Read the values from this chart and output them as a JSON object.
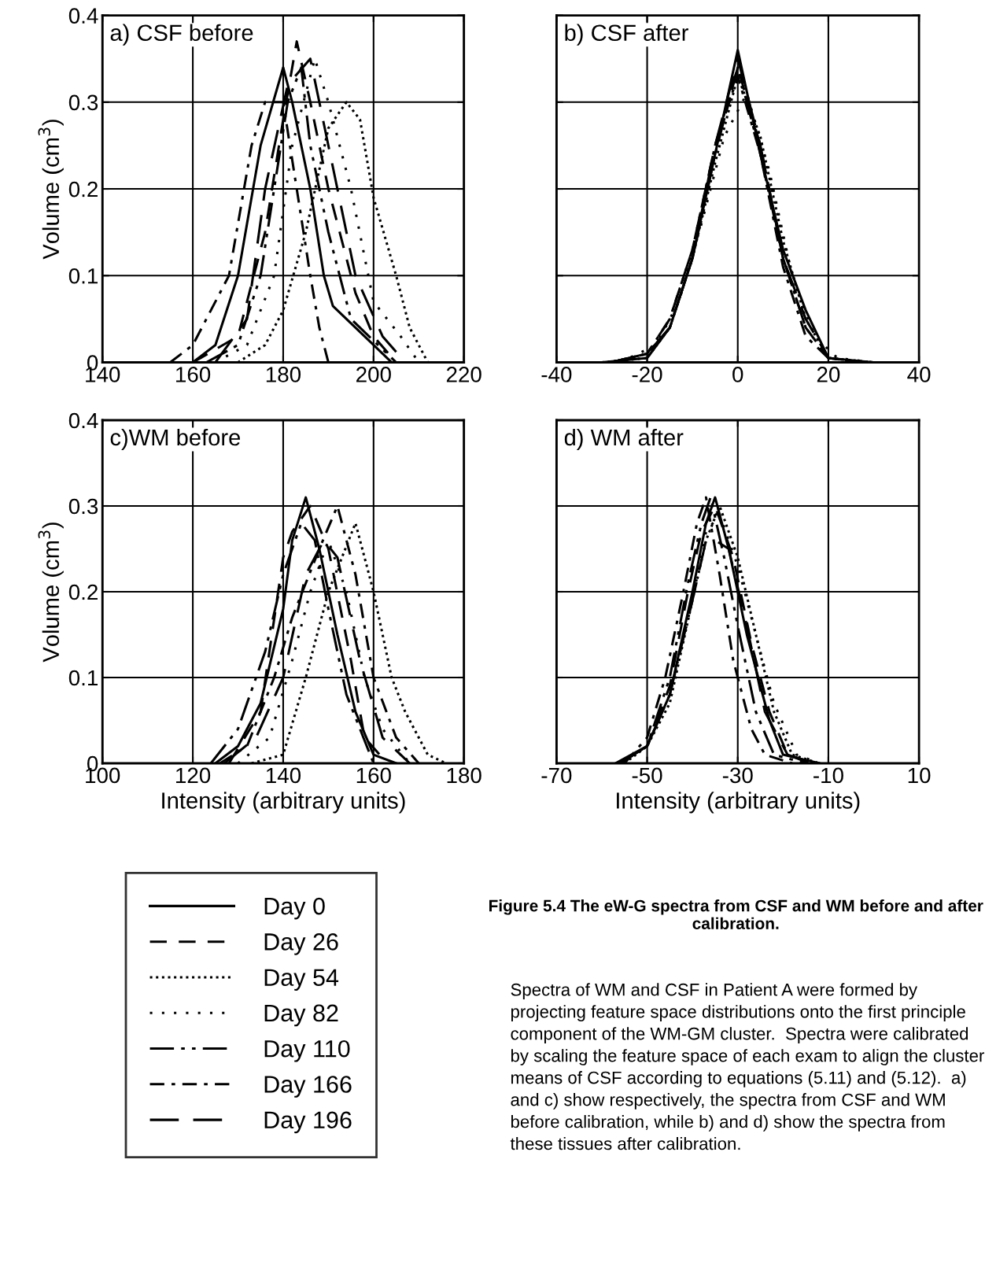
{
  "chart_data": [
    {
      "type": "line",
      "title": "a) CSF before",
      "ylabel": "Volume (cm$^{3}$)",
      "xlim": [
        140,
        220
      ],
      "xticks": [
        140,
        160,
        180,
        200,
        220
      ],
      "ylim": [
        0,
        0.4
      ],
      "yticks": [
        0,
        0.1,
        0.2,
        0.3,
        0.4
      ],
      "grid": true,
      "legend": "bottom",
      "tick_labels": "xy",
      "annotations": [
        "Figure 5.4 The eW-G spectra from CSF and WM before and after calibration.",
        "Spectra of WM and CSF in Patient A were formed by projecting feature space distributions onto the first principle component of the WM-GM cluster.  Spectra were calibrated by scaling the feature space of each exam to align the cluster means of CSF according to equations (5.11) and (5.12).  a) and c) show respectively, the spectra from CSF and WM before calibration, while b) and d) show the spectra from these tissues after calibration."
      ],
      "series": [
        {
          "name": "Day 0",
          "color": "#000000",
          "line_style": "solid",
          "x": [
            160,
            165,
            170,
            175,
            180,
            182,
            186,
            189,
            191,
            200,
            204
          ],
          "values": [
            0,
            0.02,
            0.1,
            0.25,
            0.34,
            0.3,
            0.2,
            0.1,
            0.065,
            0.02,
            0
          ]
        },
        {
          "name": "Day 26",
          "color": "#000000",
          "line_style": "dashed",
          "x": [
            160,
            170,
            176,
            180,
            183,
            186,
            190,
            196,
            200,
            205
          ],
          "values": [
            0,
            0.03,
            0.15,
            0.28,
            0.37,
            0.3,
            0.2,
            0.08,
            0.03,
            0
          ]
        },
        {
          "name": "Day 54",
          "color": "#000000",
          "line_style": "dotted",
          "x": [
            170,
            176,
            180,
            185,
            190,
            194,
            197,
            200,
            205,
            208,
            212
          ],
          "values": [
            0,
            0.02,
            0.06,
            0.15,
            0.27,
            0.3,
            0.28,
            0.19,
            0.1,
            0.04,
            0
          ]
        },
        {
          "name": "Day 82",
          "color": "#000000",
          "line_style": "loosely dotted",
          "x": [
            165,
            172,
            178,
            182,
            187,
            190,
            195,
            200,
            206,
            210
          ],
          "values": [
            0,
            0.02,
            0.1,
            0.25,
            0.35,
            0.3,
            0.2,
            0.07,
            0.03,
            0
          ]
        },
        {
          "name": "Day 110",
          "color": "#000000",
          "line_style": "dash dot dot",
          "x": [
            163,
            170,
            175,
            178,
            181,
            184,
            186,
            190,
            195,
            205
          ],
          "values": [
            0,
            0.02,
            0.1,
            0.2,
            0.3,
            0.34,
            0.25,
            0.15,
            0.05,
            0
          ]
        },
        {
          "name": "Day 166",
          "color": "#000000",
          "line_style": "dash dot",
          "x": [
            155,
            160,
            168,
            173,
            176,
            180,
            183,
            186,
            188,
            190
          ],
          "values": [
            0,
            0.02,
            0.1,
            0.25,
            0.3,
            0.3,
            0.2,
            0.1,
            0.04,
            0
          ]
        },
        {
          "name": "Day 196",
          "color": "#000000",
          "line_style": "long dashed",
          "x": [
            165,
            172,
            176,
            181,
            186,
            190,
            196,
            202,
            207
          ],
          "values": [
            0,
            0.05,
            0.2,
            0.32,
            0.35,
            0.25,
            0.1,
            0.03,
            0
          ]
        }
      ]
    },
    {
      "type": "line",
      "title": "b) CSF after",
      "xlim": [
        -40,
        40
      ],
      "xticks": [
        -40,
        -20,
        0,
        20,
        40
      ],
      "ylim": [
        0,
        0.4
      ],
      "yticks": [
        0,
        0.1,
        0.2,
        0.3,
        0.4
      ],
      "grid": true,
      "legend": "bottom",
      "tick_labels": "x",
      "series": [
        {
          "name": "Day 0",
          "color": "#000000",
          "line_style": "solid",
          "x": [
            -30,
            -20,
            -15,
            -10,
            -5,
            0,
            5,
            10,
            15,
            20,
            30
          ],
          "values": [
            0,
            0.005,
            0.04,
            0.12,
            0.24,
            0.36,
            0.24,
            0.13,
            0.06,
            0.005,
            0
          ]
        },
        {
          "name": "Day 26",
          "color": "#000000",
          "line_style": "dashed",
          "x": [
            -28,
            -20,
            -15,
            -10,
            -5,
            0,
            5,
            10,
            15,
            20,
            28
          ],
          "values": [
            0,
            0.01,
            0.05,
            0.13,
            0.25,
            0.34,
            0.25,
            0.12,
            0.04,
            0.005,
            0
          ]
        },
        {
          "name": "Day 54",
          "color": "#000000",
          "line_style": "dotted",
          "x": [
            -30,
            -20,
            -15,
            -10,
            -5,
            0,
            5,
            10,
            15,
            20,
            30
          ],
          "values": [
            0,
            0.005,
            0.04,
            0.12,
            0.23,
            0.33,
            0.26,
            0.14,
            0.05,
            0.005,
            0
          ]
        },
        {
          "name": "Day 82",
          "color": "#000000",
          "line_style": "loosely dotted",
          "x": [
            -26,
            -18,
            -13,
            -8,
            -3,
            2,
            7,
            12,
            17,
            22,
            30
          ],
          "values": [
            0,
            0.02,
            0.07,
            0.16,
            0.26,
            0.31,
            0.22,
            0.1,
            0.03,
            0.005,
            0
          ]
        },
        {
          "name": "Day 110",
          "color": "#000000",
          "line_style": "dash dot dot",
          "x": [
            -28,
            -20,
            -15,
            -10,
            -5,
            0,
            5,
            10,
            15,
            20,
            28
          ],
          "values": [
            0,
            0.01,
            0.04,
            0.12,
            0.24,
            0.34,
            0.24,
            0.12,
            0.04,
            0.005,
            0
          ]
        },
        {
          "name": "Day 166",
          "color": "#000000",
          "line_style": "dash dot",
          "x": [
            -28,
            -20,
            -15,
            -10,
            -5,
            0,
            5,
            10,
            15,
            20,
            28
          ],
          "values": [
            0,
            0.01,
            0.05,
            0.13,
            0.25,
            0.33,
            0.24,
            0.11,
            0.03,
            0.005,
            0
          ]
        },
        {
          "name": "Day 196",
          "color": "#000000",
          "line_style": "long dashed",
          "x": [
            -28,
            -20,
            -15,
            -10,
            -5,
            0,
            5,
            10,
            15,
            20,
            28
          ],
          "values": [
            0,
            0.01,
            0.04,
            0.12,
            0.25,
            0.35,
            0.25,
            0.12,
            0.05,
            0.005,
            0
          ]
        }
      ]
    },
    {
      "type": "line",
      "title": "c)WM before",
      "ylabel": "Volume (cm$^{3}$)",
      "xlabel": "Intensity (arbitrary units)",
      "xlim": [
        100,
        180
      ],
      "xticks": [
        100,
        120,
        140,
        160,
        180
      ],
      "ylim": [
        0,
        0.4
      ],
      "yticks": [
        0,
        0.1,
        0.2,
        0.3,
        0.4
      ],
      "grid": true,
      "legend": "bottom",
      "tick_labels": "xy",
      "series": [
        {
          "name": "Day 0",
          "color": "#000000",
          "line_style": "solid",
          "x": [
            125,
            130,
            135,
            140,
            142,
            145,
            148,
            152,
            156,
            160,
            165
          ],
          "values": [
            0,
            0.02,
            0.07,
            0.18,
            0.26,
            0.31,
            0.25,
            0.15,
            0.06,
            0.01,
            0
          ]
        },
        {
          "name": "Day 26",
          "color": "#000000",
          "line_style": "dashed",
          "x": [
            128,
            135,
            140,
            142,
            146,
            150,
            155,
            158,
            163
          ],
          "values": [
            0,
            0.06,
            0.24,
            0.27,
            0.3,
            0.25,
            0.12,
            0.03,
            0
          ]
        },
        {
          "name": "Day 54",
          "color": "#000000",
          "line_style": "dotted",
          "x": [
            133,
            140,
            145,
            150,
            156,
            160,
            164,
            167,
            172,
            176
          ],
          "values": [
            0,
            0.01,
            0.1,
            0.2,
            0.28,
            0.2,
            0.1,
            0.06,
            0.01,
            0
          ]
        },
        {
          "name": "Day 82",
          "color": "#000000",
          "line_style": "loosely dotted",
          "x": [
            130,
            137,
            142,
            146,
            150,
            154,
            158,
            162,
            168
          ],
          "values": [
            0,
            0.03,
            0.12,
            0.2,
            0.26,
            0.2,
            0.1,
            0.04,
            0
          ]
        },
        {
          "name": "Day 110",
          "color": "#000000",
          "line_style": "dash dot dot",
          "x": [
            124,
            130,
            136,
            140,
            144,
            147,
            150,
            154,
            160
          ],
          "values": [
            0,
            0.04,
            0.13,
            0.22,
            0.28,
            0.26,
            0.18,
            0.08,
            0
          ]
        },
        {
          "name": "Day 166",
          "color": "#000000",
          "line_style": "dash dot",
          "x": [
            126,
            132,
            138,
            142,
            148,
            152,
            156,
            160,
            165,
            170
          ],
          "values": [
            0,
            0.02,
            0.1,
            0.17,
            0.25,
            0.3,
            0.22,
            0.1,
            0.03,
            0
          ]
        },
        {
          "name": "Day 196",
          "color": "#000000",
          "line_style": "long dashed",
          "x": [
            127,
            134,
            140,
            145,
            149,
            152,
            157,
            162,
            168
          ],
          "values": [
            0,
            0.03,
            0.1,
            0.22,
            0.26,
            0.24,
            0.12,
            0.03,
            0
          ]
        }
      ]
    },
    {
      "type": "line",
      "title": "d) WM after",
      "xlabel": "Intensity (arbitrary units)",
      "xlim": [
        -70,
        10
      ],
      "xticks": [
        -70,
        -50,
        -30,
        -10,
        10
      ],
      "ylim": [
        0,
        0.4
      ],
      "yticks": [
        0,
        0.1,
        0.2,
        0.3,
        0.4
      ],
      "grid": true,
      "legend": "bottom",
      "tick_labels": "x",
      "series": [
        {
          "name": "Day 0",
          "color": "#000000",
          "line_style": "solid",
          "x": [
            -57,
            -50,
            -45,
            -40,
            -37,
            -35,
            -32,
            -28,
            -23,
            -20,
            -12
          ],
          "values": [
            0,
            0.02,
            0.08,
            0.2,
            0.28,
            0.31,
            0.25,
            0.15,
            0.05,
            0.01,
            0
          ]
        },
        {
          "name": "Day 26",
          "color": "#000000",
          "line_style": "dashed",
          "x": [
            -56,
            -50,
            -45,
            -41,
            -38,
            -35,
            -31,
            -27,
            -23,
            -19,
            -14
          ],
          "values": [
            0,
            0.02,
            0.09,
            0.2,
            0.27,
            0.3,
            0.24,
            0.14,
            0.06,
            0.01,
            0
          ]
        },
        {
          "name": "Day 54",
          "color": "#000000",
          "line_style": "dotted",
          "x": [
            -55,
            -50,
            -45,
            -40,
            -37,
            -34,
            -30,
            -26,
            -22,
            -18,
            -12
          ],
          "values": [
            0,
            0.02,
            0.07,
            0.19,
            0.26,
            0.3,
            0.24,
            0.15,
            0.06,
            0.01,
            0
          ]
        },
        {
          "name": "Day 82",
          "color": "#000000",
          "line_style": "loosely dotted",
          "x": [
            -56,
            -50,
            -45,
            -40,
            -37,
            -34,
            -30,
            -26,
            -22,
            -17,
            -12
          ],
          "values": [
            0,
            0.02,
            0.08,
            0.19,
            0.27,
            0.29,
            0.23,
            0.15,
            0.07,
            0.01,
            0
          ]
        },
        {
          "name": "Day 110",
          "color": "#000000",
          "line_style": "dash dot dot",
          "x": [
            -56,
            -50,
            -45,
            -41,
            -38,
            -36,
            -33,
            -30,
            -26,
            -22,
            -15
          ],
          "values": [
            0,
            0.02,
            0.1,
            0.21,
            0.28,
            0.31,
            0.24,
            0.16,
            0.06,
            0.01,
            0
          ]
        },
        {
          "name": "Day 166",
          "color": "#000000",
          "line_style": "dash dot",
          "x": [
            -55,
            -50,
            -46,
            -42,
            -39,
            -37,
            -34,
            -31,
            -27,
            -24,
            -18
          ],
          "values": [
            0,
            0.03,
            0.1,
            0.2,
            0.28,
            0.31,
            0.22,
            0.12,
            0.04,
            0.01,
            0
          ]
        },
        {
          "name": "Day 196",
          "color": "#000000",
          "line_style": "long dashed",
          "x": [
            -56,
            -50,
            -45,
            -40,
            -37,
            -35,
            -32,
            -28,
            -24,
            -19,
            -13
          ],
          "values": [
            0,
            0.02,
            0.08,
            0.19,
            0.26,
            0.26,
            0.25,
            0.16,
            0.06,
            0.01,
            0
          ]
        }
      ]
    }
  ]
}
